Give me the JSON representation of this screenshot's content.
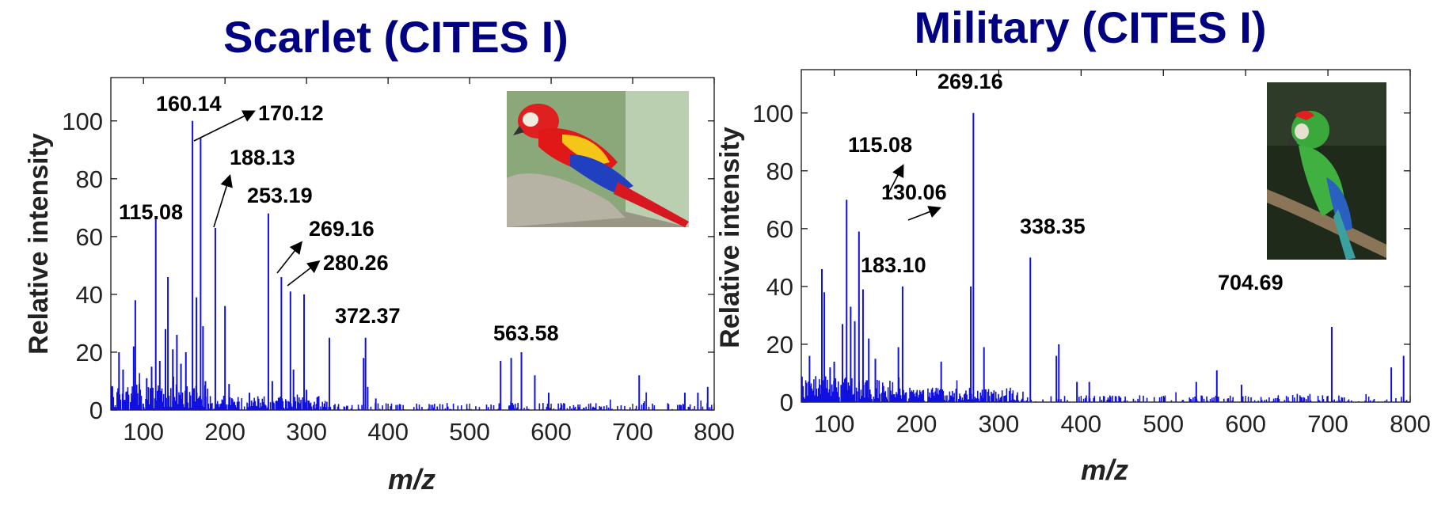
{
  "chart_data": [
    {
      "type": "line",
      "title": "Scarlet (CITES I)",
      "xlabel": "m/z",
      "ylabel": "Relative intensity",
      "xlim": [
        60,
        800
      ],
      "ylim": [
        0,
        115
      ],
      "xticks": [
        "100",
        "200",
        "300",
        "400",
        "500",
        "600",
        "700",
        "800"
      ],
      "yticks": [
        "0",
        "20",
        "40",
        "60",
        "80",
        "100"
      ],
      "image": "scarlet-macaw-photo",
      "peaks": [
        {
          "x": 70,
          "y": 20
        },
        {
          "x": 75,
          "y": 14
        },
        {
          "x": 88,
          "y": 22
        },
        {
          "x": 90,
          "y": 38
        },
        {
          "x": 95,
          "y": 9
        },
        {
          "x": 104,
          "y": 11
        },
        {
          "x": 110,
          "y": 15
        },
        {
          "x": 115.08,
          "y": 66
        },
        {
          "x": 120,
          "y": 17
        },
        {
          "x": 127,
          "y": 28
        },
        {
          "x": 130,
          "y": 46
        },
        {
          "x": 136,
          "y": 21
        },
        {
          "x": 141,
          "y": 26
        },
        {
          "x": 146,
          "y": 16
        },
        {
          "x": 152,
          "y": 20
        },
        {
          "x": 160.14,
          "y": 100
        },
        {
          "x": 165,
          "y": 39
        },
        {
          "x": 170.12,
          "y": 94
        },
        {
          "x": 173,
          "y": 29
        },
        {
          "x": 176,
          "y": 10
        },
        {
          "x": 188.13,
          "y": 63
        },
        {
          "x": 200,
          "y": 36
        },
        {
          "x": 205,
          "y": 9
        },
        {
          "x": 230,
          "y": 6
        },
        {
          "x": 253.19,
          "y": 68
        },
        {
          "x": 258,
          "y": 10
        },
        {
          "x": 269.16,
          "y": 46
        },
        {
          "x": 280.26,
          "y": 41
        },
        {
          "x": 284,
          "y": 14
        },
        {
          "x": 297,
          "y": 40
        },
        {
          "x": 300,
          "y": 7
        },
        {
          "x": 328,
          "y": 25
        },
        {
          "x": 370,
          "y": 18
        },
        {
          "x": 372.37,
          "y": 25
        },
        {
          "x": 375,
          "y": 8
        },
        {
          "x": 385,
          "y": 4
        },
        {
          "x": 538,
          "y": 17
        },
        {
          "x": 551,
          "y": 18
        },
        {
          "x": 563.58,
          "y": 20
        },
        {
          "x": 580,
          "y": 12
        },
        {
          "x": 597,
          "y": 6
        },
        {
          "x": 708,
          "y": 12
        },
        {
          "x": 764,
          "y": 6
        },
        {
          "x": 780,
          "y": 6
        },
        {
          "x": 792,
          "y": 8
        }
      ],
      "annotations": [
        {
          "label": "115.08"
        },
        {
          "label": "160.14"
        },
        {
          "label": "170.12"
        },
        {
          "label": "188.13"
        },
        {
          "label": "253.19"
        },
        {
          "label": "269.16"
        },
        {
          "label": "280.26"
        },
        {
          "label": "372.37"
        },
        {
          "label": "563.58"
        }
      ]
    },
    {
      "type": "line",
      "title": "Military (CITES I)",
      "xlabel": "m/z",
      "ylabel": "Relative intensity",
      "xlim": [
        60,
        800
      ],
      "ylim": [
        0,
        115
      ],
      "xticks": [
        "100",
        "200",
        "300",
        "400",
        "500",
        "600",
        "700",
        "800"
      ],
      "yticks": [
        "0",
        "20",
        "40",
        "60",
        "80",
        "100"
      ],
      "image": "military-macaw-photo",
      "peaks": [
        {
          "x": 70,
          "y": 16
        },
        {
          "x": 85,
          "y": 46
        },
        {
          "x": 88,
          "y": 38
        },
        {
          "x": 95,
          "y": 12
        },
        {
          "x": 100,
          "y": 14
        },
        {
          "x": 110,
          "y": 27
        },
        {
          "x": 115.08,
          "y": 70
        },
        {
          "x": 120,
          "y": 33
        },
        {
          "x": 125,
          "y": 28
        },
        {
          "x": 130.06,
          "y": 59
        },
        {
          "x": 135,
          "y": 39
        },
        {
          "x": 142,
          "y": 22
        },
        {
          "x": 150,
          "y": 15
        },
        {
          "x": 178,
          "y": 19
        },
        {
          "x": 183.1,
          "y": 40
        },
        {
          "x": 230,
          "y": 14
        },
        {
          "x": 266,
          "y": 40
        },
        {
          "x": 269.16,
          "y": 100
        },
        {
          "x": 282,
          "y": 19
        },
        {
          "x": 338.35,
          "y": 50
        },
        {
          "x": 370,
          "y": 16
        },
        {
          "x": 373,
          "y": 20
        },
        {
          "x": 395,
          "y": 7
        },
        {
          "x": 410,
          "y": 7
        },
        {
          "x": 540,
          "y": 7
        },
        {
          "x": 565,
          "y": 11
        },
        {
          "x": 595,
          "y": 6
        },
        {
          "x": 704.69,
          "y": 26
        },
        {
          "x": 777,
          "y": 12
        },
        {
          "x": 792,
          "y": 16
        }
      ],
      "annotations": [
        {
          "label": "115.08"
        },
        {
          "label": "130.06"
        },
        {
          "label": "183.10"
        },
        {
          "label": "269.16"
        },
        {
          "label": "338.35"
        },
        {
          "label": "704.69"
        }
      ]
    }
  ]
}
